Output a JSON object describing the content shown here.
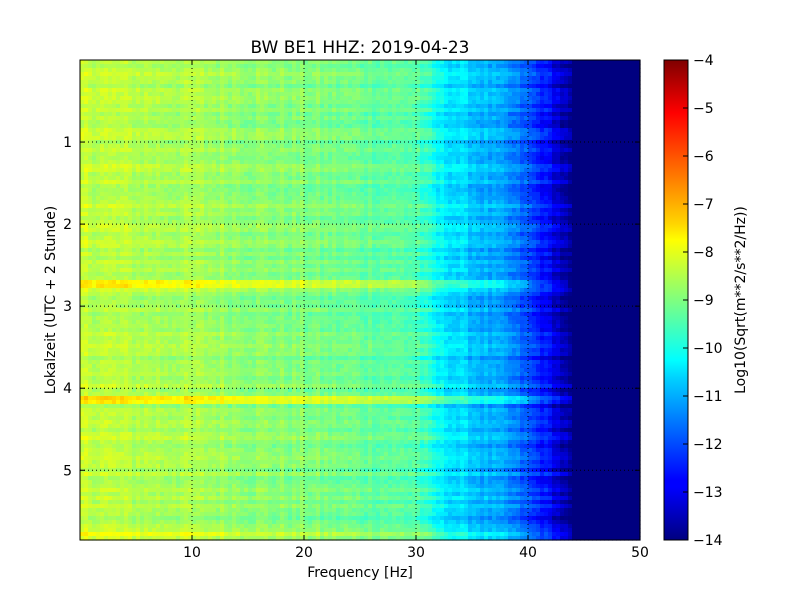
{
  "chart_data": {
    "type": "heatmap",
    "title": "BW BE1 HHZ: 2019-04-23",
    "xlabel": "Frequency [Hz]",
    "ylabel": "Lokalzeit (UTC + 2 Stunde)",
    "xlim": [
      0,
      50
    ],
    "ylim": [
      0,
      5.85
    ],
    "y_inverted": true,
    "x_ticks": [
      10,
      20,
      30,
      40,
      50
    ],
    "y_ticks": [
      1,
      2,
      3,
      4,
      5
    ],
    "grid": true,
    "colormap": "jet",
    "colorbar": {
      "label": "Log10(Sqrt(m**2/s**2/Hz))",
      "range": [
        -14,
        -4
      ],
      "ticks": [
        -14,
        -13,
        -12,
        -11,
        -10,
        -9,
        -8,
        -7,
        -6,
        -5,
        -4
      ]
    },
    "profile": {
      "frequency_hz": [
        0,
        5,
        10,
        15,
        20,
        25,
        30,
        32,
        35,
        38,
        40,
        42,
        44,
        45,
        50
      ],
      "log10_amplitude": [
        -8.3,
        -8.5,
        -8.6,
        -8.8,
        -9.0,
        -9.2,
        -9.4,
        -10.3,
        -10.8,
        -11.3,
        -12.0,
        -12.8,
        -14.0,
        -14.0,
        -14.0
      ]
    },
    "highlight_bands": [
      {
        "time_h": 2.72,
        "log10_amplitude_offset": 0.9
      },
      {
        "time_h": 4.13,
        "log10_amplitude_offset": 0.8
      },
      {
        "time_h": 5.78,
        "log10_amplitude_offset": 0.5
      }
    ]
  }
}
